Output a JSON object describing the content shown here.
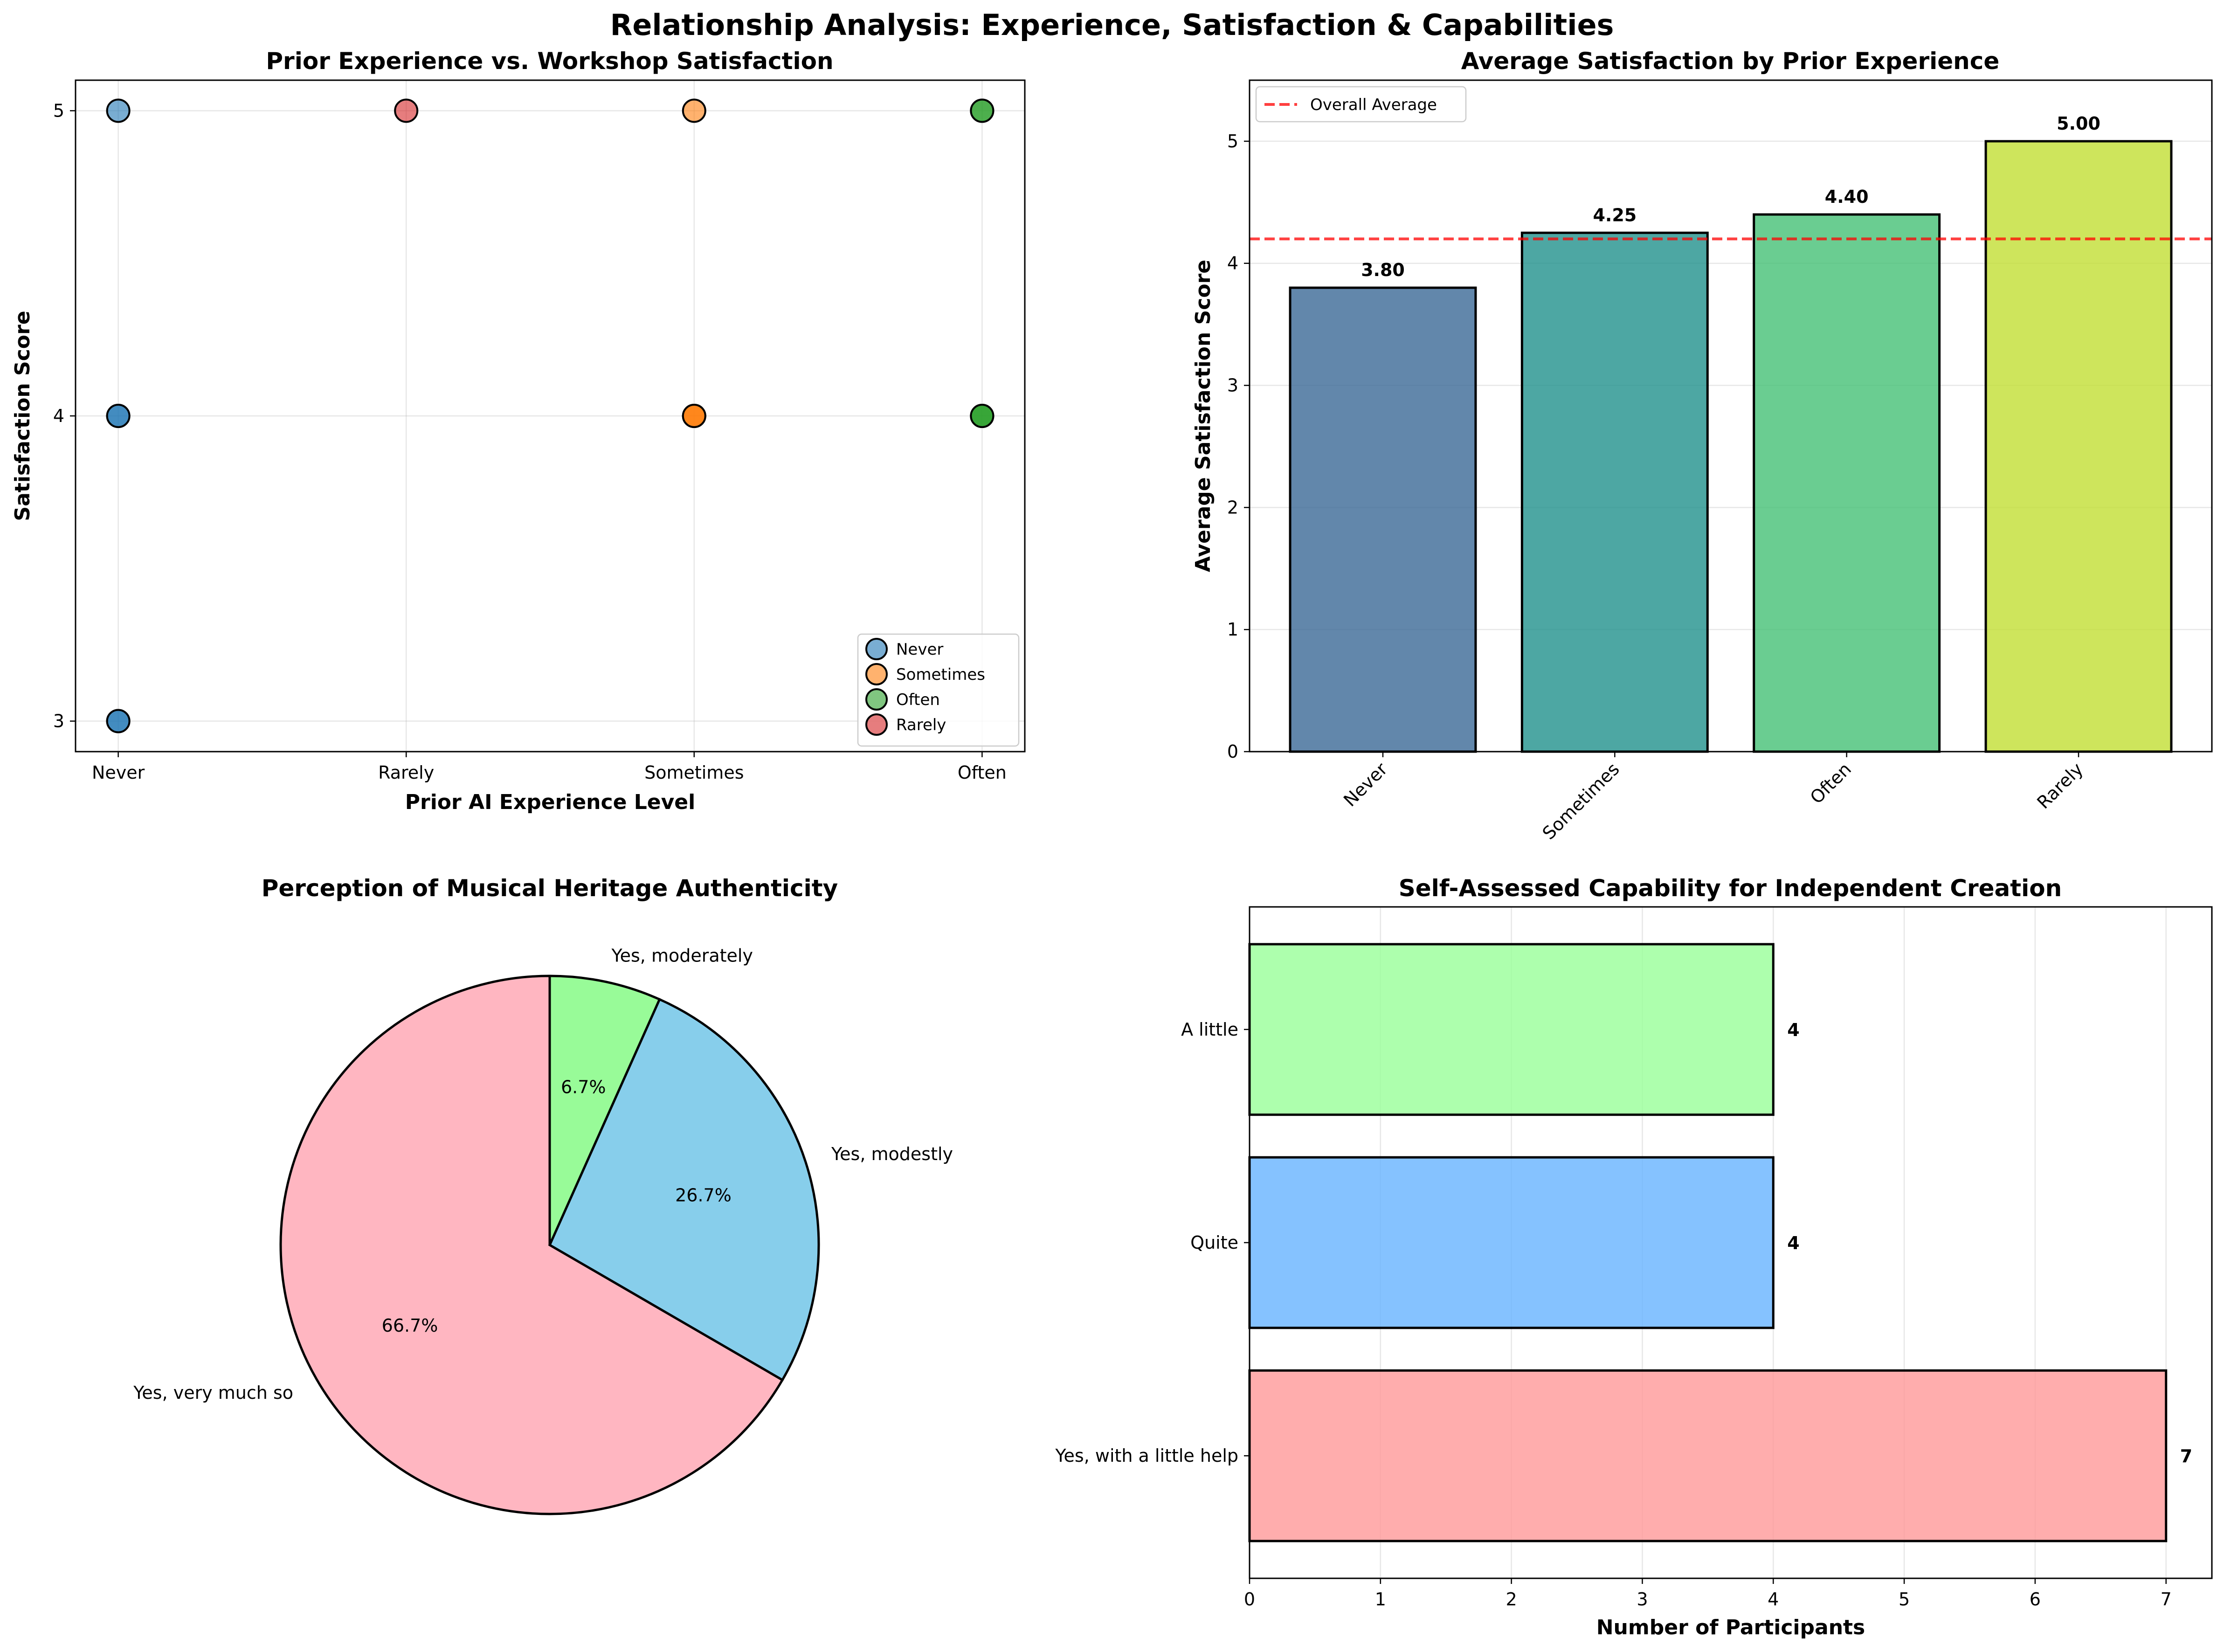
{
  "figure_title": "Relationship Analysis: Experience, Satisfaction & Capabilities",
  "chart_data": [
    {
      "type": "scatter",
      "title": "Prior Experience vs. Workshop Satisfaction",
      "xlabel": "Prior AI Experience Level",
      "ylabel": "Satisfaction Score",
      "x_categories": [
        "Never",
        "Rarely",
        "Sometimes",
        "Often"
      ],
      "y_ticks": [
        "3",
        "4",
        "5"
      ],
      "ylim": [
        2.9,
        5.1
      ],
      "legend_position": "lower-right",
      "series": [
        {
          "name": "Never",
          "color": "#1f77b4",
          "points": [
            {
              "x": "Never",
              "y": 5
            },
            {
              "x": "Never",
              "y": 4
            },
            {
              "x": "Never",
              "y": 4
            },
            {
              "x": "Never",
              "y": 3
            },
            {
              "x": "Never",
              "y": 3
            }
          ]
        },
        {
          "name": "Sometimes",
          "color": "#ff7f0e",
          "points": [
            {
              "x": "Sometimes",
              "y": 5
            },
            {
              "x": "Sometimes",
              "y": 4
            },
            {
              "x": "Sometimes",
              "y": 4
            },
            {
              "x": "Sometimes",
              "y": 4
            }
          ]
        },
        {
          "name": "Often",
          "color": "#2ca02c",
          "points": [
            {
              "x": "Often",
              "y": 5
            },
            {
              "x": "Often",
              "y": 5
            },
            {
              "x": "Often",
              "y": 4
            },
            {
              "x": "Often",
              "y": 4
            },
            {
              "x": "Often",
              "y": 4
            }
          ]
        },
        {
          "name": "Rarely",
          "color": "#d62728",
          "points": [
            {
              "x": "Rarely",
              "y": 5
            }
          ]
        }
      ]
    },
    {
      "type": "bar",
      "title": "Average Satisfaction by Prior Experience",
      "xlabel": "",
      "ylabel": "Average Satisfaction Score",
      "categories": [
        "Never",
        "Sometimes",
        "Often",
        "Rarely"
      ],
      "values": [
        3.8,
        4.25,
        4.4,
        5.0
      ],
      "value_labels": [
        "3.80",
        "4.25",
        "4.40",
        "5.00"
      ],
      "colors": [
        "#3b6996",
        "#21918c",
        "#45c175",
        "#c2de33"
      ],
      "y_ticks": [
        "0",
        "1",
        "2",
        "3",
        "4",
        "5"
      ],
      "ylim": [
        0,
        5.5
      ],
      "reference_line": {
        "label": "Overall Average",
        "value": 4.2,
        "color": "#ff0000"
      },
      "legend_position": "top-left"
    },
    {
      "type": "pie",
      "title": "Perception of Musical Heritage Authenticity",
      "slices": [
        {
          "label": "Yes, very much so",
          "value": 66.7,
          "pct_label": "66.7%",
          "color": "#ffb6c1"
        },
        {
          "label": "Yes, modestly",
          "value": 26.7,
          "pct_label": "26.7%",
          "color": "#87ceeb"
        },
        {
          "label": "Yes, moderately",
          "value": 6.7,
          "pct_label": "6.7%",
          "color": "#98fb98"
        }
      ]
    },
    {
      "type": "bar",
      "orientation": "horizontal",
      "title": "Self-Assessed Capability for Independent Creation",
      "xlabel": "Number of Participants",
      "ylabel": "",
      "categories": [
        "Yes, with a little help",
        "Quite",
        "A little"
      ],
      "values": [
        7,
        4,
        4
      ],
      "value_labels": [
        "7",
        "4",
        "4"
      ],
      "colors": [
        "#ff9999",
        "#66b3ff",
        "#99ff99"
      ],
      "x_ticks": [
        "0",
        "1",
        "2",
        "3",
        "4",
        "5",
        "6",
        "7"
      ],
      "xlim": [
        0,
        7.35
      ]
    }
  ]
}
